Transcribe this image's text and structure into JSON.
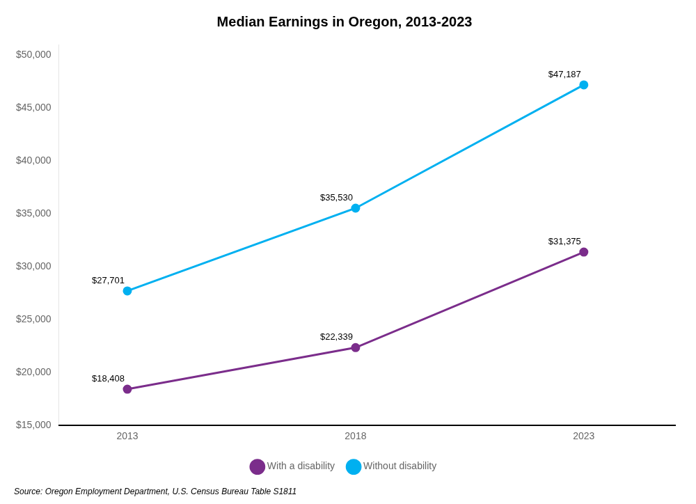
{
  "chart_data": {
    "type": "line",
    "title": "Median Earnings in Oregon, 2013-2023",
    "source": "Source: Oregon Employment Department, U.S. Census Bureau Table S1811",
    "x": [
      2013,
      2018,
      2023
    ],
    "series": [
      {
        "name": "With a disability",
        "color": "#7B2D8B",
        "marker": "circle",
        "line_style": "solid",
        "values": [
          18408,
          22339,
          31375
        ],
        "value_labels": [
          "$18,408",
          "$22,339",
          "$31,375"
        ]
      },
      {
        "name": "Without disability",
        "color": "#00B0F0",
        "marker": "circle",
        "line_style": "solid",
        "values": [
          27701,
          35530,
          47187
        ],
        "value_labels": [
          "$27,701",
          "$35,530",
          "$47,187"
        ]
      }
    ],
    "xlim": [
      2011.5,
      2025.0
    ],
    "xticks": [
      2013,
      2018,
      2023
    ],
    "ylim": [
      15000,
      51000
    ],
    "yticks": [
      {
        "value": 15000,
        "label": "$15,000"
      },
      {
        "value": 20000,
        "label": "$20,000"
      },
      {
        "value": 25000,
        "label": "$25,000"
      },
      {
        "value": 30000,
        "label": "$30,000"
      },
      {
        "value": 35000,
        "label": "$35,000"
      },
      {
        "value": 40000,
        "label": "$40,000"
      },
      {
        "value": 45000,
        "label": "$45,000"
      },
      {
        "value": 50000,
        "label": "$50,000"
      }
    ],
    "grid": false,
    "legend": "bottom",
    "data_labels": true
  }
}
